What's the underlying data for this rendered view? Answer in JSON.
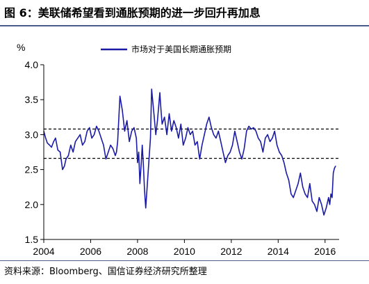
{
  "figure": {
    "title": "图 6：美联储希望看到通胀预期的进一步回升再加息",
    "source": "资料来源：Bloomberg、国信证券经济研究所整理"
  },
  "colors": {
    "series": "#1a1aa6",
    "rule": "#4a5a8a",
    "axis": "#000000"
  },
  "chart_data": {
    "type": "line",
    "title": "",
    "ylabel": "%",
    "xlabel": "",
    "ylim": [
      1.5,
      4.0
    ],
    "xlim": [
      2004.0,
      2016.6
    ],
    "yticks": [
      1.5,
      2.0,
      2.5,
      3.0,
      3.5,
      4.0
    ],
    "ytick_labels": [
      "1.5",
      "2.0",
      "2.5",
      "3.0",
      "3.5",
      "4.0"
    ],
    "xticks": [
      2004,
      2006,
      2008,
      2010,
      2012,
      2014,
      2016
    ],
    "xtick_labels": [
      "2004",
      "2006",
      "2008",
      "2010",
      "2012",
      "2014",
      "2016"
    ],
    "grid": false,
    "legend_position": "top-center",
    "reference_lines": [
      {
        "y": 3.08,
        "style": "dashed"
      },
      {
        "y": 2.66,
        "style": "dashed"
      }
    ],
    "series": [
      {
        "name": "市场对于美国长期通胀预期",
        "x": [
          2004.0,
          2004.08,
          2004.15,
          2004.25,
          2004.33,
          2004.42,
          2004.5,
          2004.6,
          2004.7,
          2004.8,
          2004.88,
          2004.95,
          2005.05,
          2005.15,
          2005.25,
          2005.35,
          2005.45,
          2005.55,
          2005.65,
          2005.75,
          2005.85,
          2005.95,
          2006.05,
          2006.15,
          2006.25,
          2006.35,
          2006.45,
          2006.55,
          2006.65,
          2006.75,
          2006.85,
          2006.95,
          2007.05,
          2007.1,
          2007.15,
          2007.25,
          2007.35,
          2007.45,
          2007.55,
          2007.65,
          2007.75,
          2007.85,
          2007.95,
          2008.0,
          2008.05,
          2008.1,
          2008.15,
          2008.2,
          2008.25,
          2008.3,
          2008.35,
          2008.45,
          2008.55,
          2008.6,
          2008.7,
          2008.78,
          2008.85,
          2008.9,
          2008.95,
          2009.0,
          2009.05,
          2009.15,
          2009.25,
          2009.35,
          2009.45,
          2009.55,
          2009.65,
          2009.75,
          2009.85,
          2009.95,
          2010.05,
          2010.15,
          2010.25,
          2010.35,
          2010.45,
          2010.55,
          2010.65,
          2010.75,
          2010.85,
          2010.95,
          2011.05,
          2011.15,
          2011.25,
          2011.35,
          2011.45,
          2011.55,
          2011.65,
          2011.75,
          2011.85,
          2011.95,
          2012.05,
          2012.15,
          2012.25,
          2012.35,
          2012.45,
          2012.55,
          2012.65,
          2012.75,
          2012.85,
          2012.95,
          2013.05,
          2013.15,
          2013.25,
          2013.35,
          2013.45,
          2013.55,
          2013.65,
          2013.75,
          2013.85,
          2013.95,
          2014.05,
          2014.15,
          2014.25,
          2014.35,
          2014.45,
          2014.55,
          2014.65,
          2014.75,
          2014.85,
          2014.95,
          2015.05,
          2015.15,
          2015.25,
          2015.35,
          2015.45,
          2015.55,
          2015.65,
          2015.75,
          2015.85,
          2015.95,
          2016.05,
          2016.15,
          2016.2,
          2016.25,
          2016.3,
          2016.35,
          2016.4,
          2016.45
        ],
        "values": [
          3.05,
          2.95,
          2.88,
          2.85,
          2.82,
          2.9,
          2.95,
          2.78,
          2.75,
          2.5,
          2.55,
          2.65,
          2.7,
          2.85,
          2.75,
          2.9,
          2.95,
          3.0,
          2.85,
          2.9,
          3.05,
          3.1,
          2.95,
          3.0,
          3.12,
          3.05,
          2.95,
          2.85,
          2.65,
          2.75,
          2.85,
          2.8,
          2.7,
          2.75,
          2.9,
          3.55,
          3.35,
          3.05,
          3.2,
          2.9,
          3.05,
          3.1,
          2.95,
          2.6,
          2.75,
          2.3,
          2.55,
          2.85,
          2.55,
          2.2,
          1.95,
          2.45,
          2.95,
          3.65,
          3.3,
          3.0,
          3.2,
          3.4,
          3.6,
          3.35,
          3.15,
          3.25,
          3.0,
          3.3,
          3.05,
          3.2,
          3.1,
          2.95,
          3.15,
          2.85,
          2.95,
          3.1,
          3.0,
          3.05,
          2.85,
          2.9,
          2.65,
          2.85,
          3.0,
          3.15,
          3.25,
          3.1,
          3.0,
          2.95,
          3.05,
          2.9,
          2.75,
          2.6,
          2.7,
          2.75,
          2.85,
          3.05,
          2.9,
          2.75,
          2.65,
          2.8,
          3.05,
          3.12,
          3.08,
          3.1,
          3.05,
          2.95,
          2.9,
          2.75,
          2.95,
          3.0,
          2.9,
          2.95,
          3.05,
          2.85,
          2.75,
          2.7,
          2.6,
          2.45,
          2.35,
          2.15,
          2.1,
          2.2,
          2.3,
          2.45,
          2.25,
          2.15,
          2.1,
          2.3,
          2.05,
          2.0,
          1.9,
          2.1,
          2.0,
          1.85,
          1.95,
          2.1,
          2.0,
          2.15,
          2.1,
          2.45,
          2.52,
          2.55
        ]
      }
    ]
  }
}
